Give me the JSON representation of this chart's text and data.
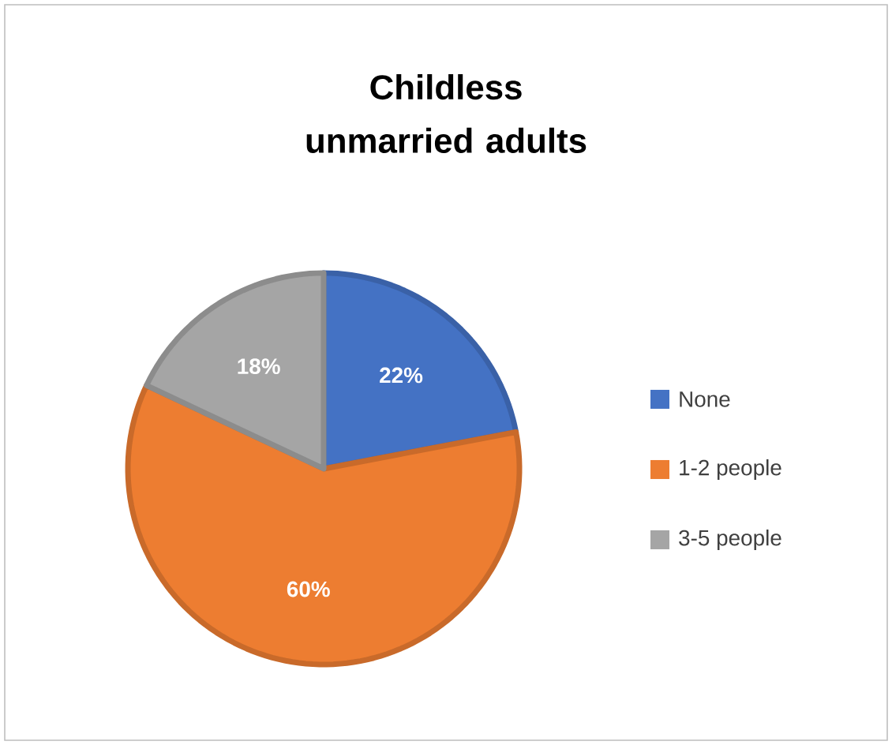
{
  "chart_data": {
    "type": "pie",
    "title": "Childless unmarried adults",
    "categories": [
      "None",
      "1-2 people",
      "3-5 people"
    ],
    "values": [
      22,
      60,
      18
    ],
    "colors": [
      "#4472c4",
      "#ed7d31",
      "#a5a5a5"
    ],
    "value_labels": [
      "22%",
      "60%",
      "18%"
    ],
    "legend": "right"
  }
}
